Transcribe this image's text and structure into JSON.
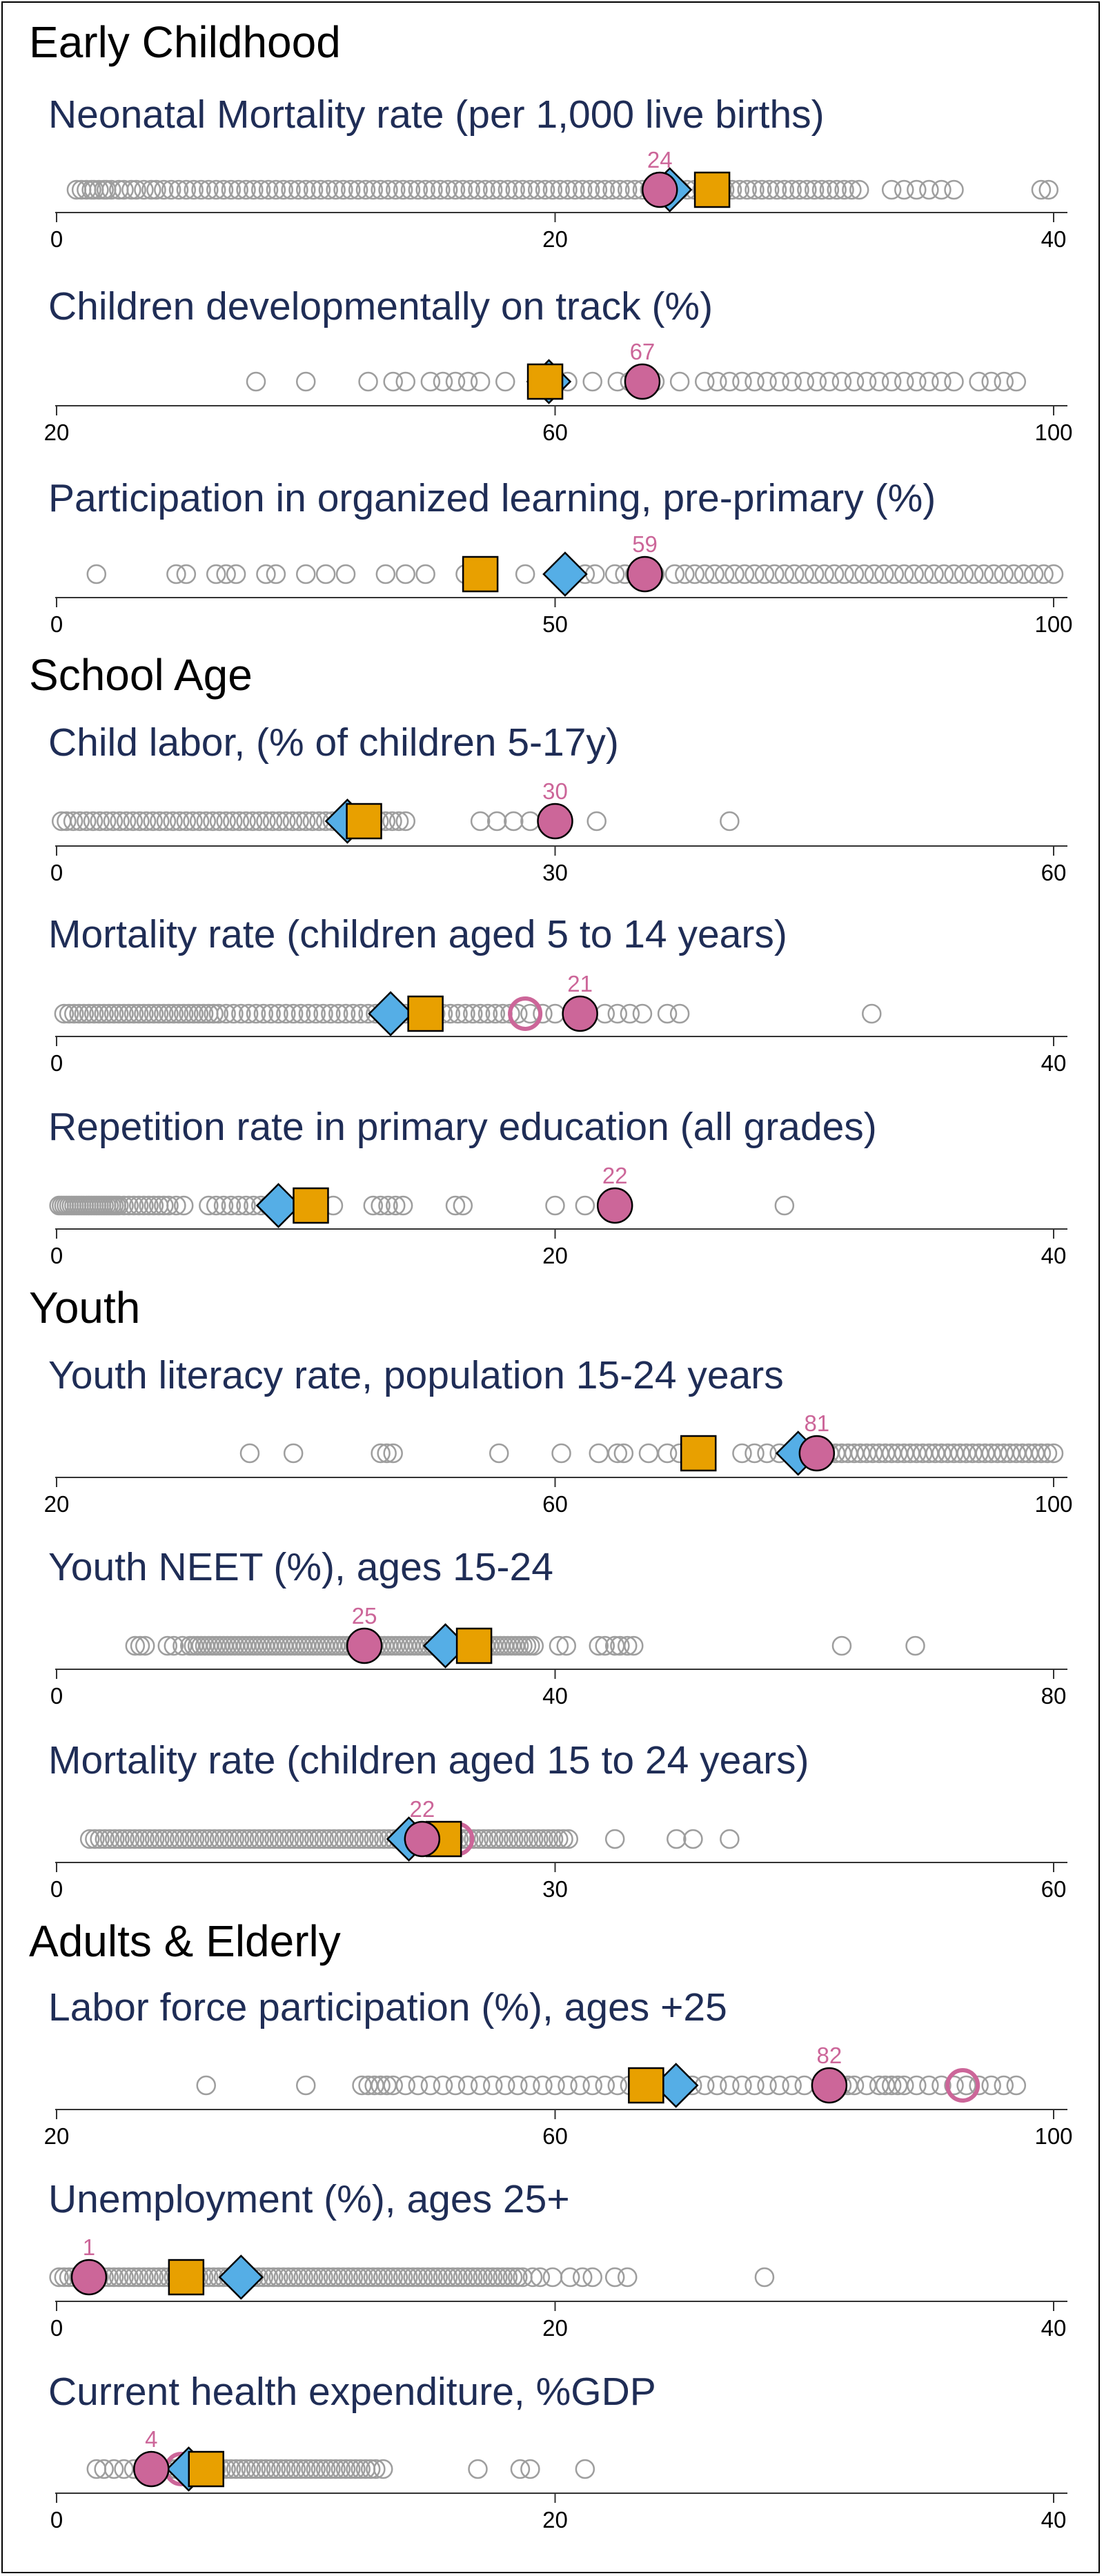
{
  "colors": {
    "other_countries": "#9e9e9e",
    "highlight": "#cc6699",
    "diamond": "#55aee6",
    "square": "#e8a000",
    "axis": "#333333",
    "title": "#1f2d56"
  },
  "chart_data": [
    {
      "section": "Early Childhood",
      "type": "scatter",
      "title": "Neonatal Mortality rate (per 1,000 live births)",
      "xlim": [
        0,
        40
      ],
      "ticks": [
        0,
        20,
        40
      ],
      "others": [
        0.8,
        1.0,
        1.2,
        1.4,
        1.5,
        1.7,
        1.9,
        2.0,
        2.2,
        2.5,
        2.7,
        3.0,
        3.2,
        3.5,
        3.8,
        4.0,
        4.3,
        4.6,
        4.9,
        5.2,
        5.5,
        5.8,
        6.1,
        6.4,
        6.7,
        7.0,
        7.3,
        7.6,
        7.9,
        8.2,
        8.5,
        8.8,
        9.1,
        9.4,
        9.7,
        10.0,
        10.3,
        10.6,
        10.9,
        11.2,
        11.5,
        11.8,
        12.1,
        12.4,
        12.7,
        13.0,
        13.3,
        13.6,
        13.9,
        14.2,
        14.5,
        14.8,
        15.1,
        15.4,
        15.7,
        16.0,
        16.3,
        16.6,
        16.9,
        17.2,
        17.5,
        17.8,
        18.1,
        18.4,
        18.7,
        19.0,
        19.3,
        19.6,
        19.9,
        20.2,
        20.5,
        20.8,
        21.1,
        21.4,
        21.7,
        22.0,
        22.3,
        22.6,
        22.9,
        23.2,
        23.5,
        23.8,
        24.1,
        24.4,
        24.7,
        25.0,
        25.3,
        25.6,
        25.9,
        26.2,
        26.5,
        26.8,
        27.1,
        27.4,
        27.7,
        28.0,
        28.3,
        28.6,
        28.9,
        29.2,
        29.5,
        29.8,
        30.1,
        30.4,
        30.7,
        31.0,
        31.3,
        31.6,
        31.9,
        32.2,
        33.5,
        34.0,
        34.5,
        35.0,
        35.5,
        36.0,
        39.5,
        39.8
      ],
      "highlight": {
        "value": 24.2,
        "label": "24"
      },
      "highlight_ring": null,
      "diamond": 24.6,
      "square": 26.3
    },
    {
      "section": null,
      "type": "scatter",
      "title": "Children developmentally on track (%)",
      "xlim": [
        20,
        100
      ],
      "ticks": [
        20,
        60,
        100
      ],
      "others": [
        36,
        40,
        45,
        47,
        48,
        50,
        51,
        52,
        53,
        54,
        56,
        61,
        63,
        65,
        66,
        67,
        68,
        70,
        72,
        73,
        74,
        75,
        76,
        77,
        78,
        79,
        80,
        81,
        82,
        83,
        84,
        85,
        86,
        87,
        88,
        89,
        90,
        91,
        92,
        94,
        95,
        96,
        97
      ],
      "highlight": {
        "value": 67,
        "label": "67"
      },
      "highlight_ring": null,
      "diamond": 59.5,
      "square": 59.2
    },
    {
      "section": null,
      "type": "scatter",
      "title": "Participation in organized learning,  pre-primary (%)",
      "xlim": [
        0,
        100
      ],
      "ticks": [
        0,
        50,
        100
      ],
      "others": [
        4,
        12,
        13,
        16,
        17,
        18,
        21,
        22,
        25,
        27,
        29,
        33,
        35,
        37,
        41,
        43,
        47,
        53,
        54,
        56,
        57,
        58,
        60,
        62,
        63,
        64,
        65,
        66,
        67,
        68,
        69,
        70,
        71,
        72,
        73,
        74,
        75,
        76,
        77,
        78,
        79,
        80,
        81,
        82,
        83,
        84,
        85,
        86,
        87,
        88,
        89,
        90,
        91,
        92,
        93,
        94,
        95,
        96,
        97,
        98,
        99,
        100
      ],
      "highlight": {
        "value": 59,
        "label": "59"
      },
      "highlight_ring": null,
      "diamond": 51,
      "square": 42.5
    },
    {
      "section": "School Age",
      "type": "scatter",
      "title": "Child labor, (% of children 5-17y)",
      "xlim": [
        0,
        60
      ],
      "ticks": [
        0,
        30,
        60
      ],
      "others": [
        0.3,
        0.6,
        1.0,
        1.4,
        1.8,
        2.2,
        2.6,
        3.0,
        3.4,
        3.8,
        4.2,
        4.6,
        5.0,
        5.4,
        5.8,
        6.2,
        6.6,
        7.0,
        7.4,
        7.8,
        8.2,
        8.6,
        9.0,
        9.4,
        9.8,
        10.2,
        10.6,
        11.0,
        11.4,
        11.8,
        12.2,
        12.6,
        13.0,
        13.4,
        13.8,
        14.2,
        14.6,
        15.0,
        15.4,
        15.8,
        16.2,
        16.6,
        17.0,
        17.4,
        17.8,
        18.2,
        18.6,
        19.0,
        19.4,
        19.8,
        20.2,
        20.6,
        21.0,
        25.5,
        26.5,
        27.5,
        28.5,
        32.5,
        40.5
      ],
      "highlight": {
        "value": 30,
        "label": "30"
      },
      "highlight_ring": null,
      "diamond": 17.5,
      "square": 18.5
    },
    {
      "section": null,
      "type": "scatter",
      "title": "Mortality rate (children aged 5 to 14 years)",
      "xlim": [
        0,
        40
      ],
      "ticks": [
        0,
        40
      ],
      "others": [
        0.3,
        0.5,
        0.7,
        0.9,
        1.1,
        1.3,
        1.5,
        1.7,
        1.9,
        2.1,
        2.3,
        2.5,
        2.7,
        2.9,
        3.1,
        3.3,
        3.5,
        3.7,
        3.9,
        4.1,
        4.3,
        4.5,
        4.7,
        4.9,
        5.1,
        5.3,
        5.5,
        5.7,
        5.9,
        6.1,
        6.3,
        6.5,
        6.8,
        7.1,
        7.4,
        7.7,
        8.0,
        8.3,
        8.6,
        8.9,
        9.2,
        9.5,
        9.8,
        10.1,
        10.4,
        10.7,
        11.0,
        11.3,
        11.6,
        11.9,
        12.2,
        12.5,
        12.8,
        13.1,
        13.4,
        13.7,
        14.0,
        14.3,
        14.6,
        14.9,
        15.2,
        15.5,
        15.8,
        16.1,
        16.4,
        16.7,
        17.0,
        17.3,
        17.6,
        17.9,
        18.2,
        18.5,
        19.0,
        19.5,
        20.0,
        22.0,
        22.5,
        23.0,
        23.5,
        24.5,
        25.0,
        32.7
      ],
      "highlight": {
        "value": 21,
        "label": "21"
      },
      "highlight_ring": 18.8,
      "diamond": 13.4,
      "square": 14.8
    },
    {
      "section": null,
      "type": "scatter",
      "title": "Repetition rate in primary education (all grades)",
      "xlim": [
        0,
        40
      ],
      "ticks": [
        0,
        20,
        40
      ],
      "others": [
        0.1,
        0.2,
        0.3,
        0.4,
        0.5,
        0.6,
        0.7,
        0.8,
        0.9,
        1.0,
        1.1,
        1.2,
        1.3,
        1.4,
        1.5,
        1.6,
        1.7,
        1.8,
        1.9,
        2.0,
        2.1,
        2.2,
        2.3,
        2.4,
        2.5,
        2.7,
        2.9,
        3.1,
        3.3,
        3.5,
        3.7,
        3.9,
        4.1,
        4.3,
        4.5,
        4.8,
        5.1,
        6.1,
        6.4,
        6.7,
        7.0,
        7.3,
        7.6,
        7.9,
        8.2,
        8.5,
        9.1,
        10.0,
        11.1,
        12.7,
        13.0,
        13.3,
        13.6,
        13.9,
        16.0,
        16.3,
        20.0,
        21.2,
        29.2
      ],
      "highlight": {
        "value": 22.4,
        "label": "22"
      },
      "highlight_ring": null,
      "diamond": 8.9,
      "square": 10.2
    },
    {
      "section": "Youth",
      "type": "scatter",
      "title": "Youth literacy rate, population 15-24 years",
      "xlim": [
        20,
        100
      ],
      "ticks": [
        20,
        60,
        100
      ],
      "others": [
        35.5,
        39,
        46,
        46.5,
        47,
        55.5,
        60.5,
        63.5,
        65,
        65.5,
        67.5,
        69,
        70,
        75,
        76,
        77,
        78,
        79,
        80,
        80.5,
        81,
        81.5,
        82,
        82.5,
        83,
        83.5,
        84,
        84.5,
        85,
        85.5,
        86,
        86.5,
        87,
        87.5,
        88,
        88.5,
        89,
        89.5,
        90,
        90.5,
        91,
        91.5,
        92,
        92.5,
        93,
        93.5,
        94,
        94.5,
        95,
        95.5,
        96,
        96.5,
        97,
        97.5,
        98,
        98.5,
        99,
        99.5,
        100
      ],
      "highlight": {
        "value": 81,
        "label": "81"
      },
      "highlight_ring": null,
      "diamond": 79.5,
      "square": 71.5
    },
    {
      "section": null,
      "type": "scatter",
      "title": "Youth NEET (%), ages 15-24",
      "xlim": [
        0,
        80
      ],
      "ticks": [
        0,
        40,
        80
      ],
      "others": [
        6.3,
        6.7,
        7.1,
        8.9,
        9.4,
        10.1,
        10.7,
        11.0,
        11.3,
        11.6,
        11.9,
        12.2,
        12.5,
        12.8,
        13.1,
        13.4,
        13.7,
        14.0,
        14.3,
        14.6,
        14.9,
        15.2,
        15.5,
        15.8,
        16.1,
        16.4,
        16.7,
        17.0,
        17.3,
        17.6,
        17.9,
        18.2,
        18.5,
        18.8,
        19.1,
        19.4,
        19.7,
        20.0,
        20.3,
        20.6,
        20.9,
        21.2,
        21.5,
        21.8,
        22.1,
        22.4,
        22.7,
        23.0,
        23.3,
        23.6,
        23.9,
        24.2,
        24.5,
        24.8,
        25.1,
        25.4,
        25.7,
        26.0,
        26.3,
        26.6,
        26.9,
        27.2,
        27.5,
        27.8,
        28.1,
        28.4,
        28.7,
        29.0,
        29.3,
        29.6,
        29.9,
        30.2,
        30.5,
        30.8,
        31.1,
        31.4,
        31.7,
        32.0,
        32.3,
        32.6,
        32.9,
        33.2,
        33.5,
        33.8,
        34.1,
        34.4,
        34.7,
        35.0,
        35.3,
        35.6,
        35.9,
        36.2,
        36.5,
        36.8,
        37.1,
        37.4,
        37.7,
        38.0,
        38.3,
        40.3,
        40.9,
        43.5,
        44.0,
        44.8,
        45.2,
        45.8,
        46.3,
        63.0,
        68.9
      ],
      "highlight": {
        "value": 24.7,
        "label": "25"
      },
      "highlight_ring": null,
      "diamond": 31.2,
      "square": 33.5
    },
    {
      "section": null,
      "type": "scatter",
      "title": "Mortality rate (children aged 15 to 24 years)",
      "xlim": [
        0,
        60
      ],
      "ticks": [
        0,
        30,
        60
      ],
      "others": [
        2.0,
        2.3,
        2.6,
        2.9,
        3.2,
        3.5,
        3.8,
        4.1,
        4.4,
        4.7,
        5.0,
        5.3,
        5.6,
        5.9,
        6.2,
        6.5,
        6.8,
        7.1,
        7.4,
        7.7,
        8.0,
        8.3,
        8.6,
        8.9,
        9.2,
        9.5,
        9.8,
        10.1,
        10.4,
        10.7,
        11.0,
        11.3,
        11.6,
        11.9,
        12.2,
        12.5,
        12.8,
        13.1,
        13.4,
        13.7,
        14.0,
        14.3,
        14.6,
        14.9,
        15.2,
        15.5,
        15.8,
        16.1,
        16.4,
        16.7,
        17.0,
        17.3,
        17.6,
        17.9,
        18.2,
        18.5,
        18.8,
        19.1,
        19.4,
        19.7,
        20.0,
        20.3,
        20.6,
        20.9,
        21.2,
        21.5,
        21.8,
        22.1,
        22.4,
        22.7,
        23.0,
        23.3,
        23.6,
        23.9,
        24.2,
        24.5,
        24.8,
        25.1,
        25.4,
        25.7,
        26.0,
        26.3,
        26.6,
        26.9,
        27.2,
        27.5,
        27.8,
        28.1,
        28.4,
        28.7,
        29.0,
        29.3,
        29.6,
        29.9,
        30.2,
        30.5,
        30.8,
        33.6,
        37.3,
        38.3,
        40.5
      ],
      "highlight": {
        "value": 22,
        "label": "22"
      },
      "highlight_ring": 24.1,
      "diamond": 21.2,
      "square": 23.3
    },
    {
      "section": "Adults & Elderly",
      "type": "scatter",
      "title": "Labor force participation (%), ages +25",
      "xlim": [
        20,
        100
      ],
      "ticks": [
        20,
        60,
        100
      ],
      "others": [
        32,
        40,
        44.5,
        45,
        45.5,
        46,
        46.5,
        47,
        48,
        49,
        50,
        51,
        52,
        53,
        54,
        55,
        56,
        57,
        58,
        59,
        60,
        61,
        62,
        63,
        64,
        65,
        66,
        67,
        68,
        69,
        70,
        71,
        72,
        73,
        74,
        75,
        76,
        77,
        78,
        79,
        80,
        83,
        83.5,
        84,
        85,
        86,
        86.5,
        87,
        87.5,
        88,
        89,
        90,
        91,
        92,
        93,
        94,
        95,
        96,
        97
      ],
      "highlight": {
        "value": 82,
        "label": "82"
      },
      "highlight_ring": 92.7,
      "diamond": 69.7,
      "square": 67.3
    },
    {
      "section": null,
      "type": "scatter",
      "title": "Unemployment (%), ages 25+",
      "xlim": [
        0,
        40
      ],
      "ticks": [
        0,
        20,
        40
      ],
      "others": [
        0.1,
        0.3,
        0.5,
        0.7,
        0.9,
        1.1,
        1.3,
        1.5,
        1.7,
        1.9,
        2.1,
        2.3,
        2.5,
        2.7,
        2.9,
        3.1,
        3.3,
        3.5,
        3.7,
        3.9,
        4.1,
        4.3,
        4.5,
        4.7,
        4.9,
        5.1,
        5.3,
        5.5,
        5.7,
        5.9,
        6.1,
        6.3,
        6.5,
        6.7,
        6.9,
        7.1,
        7.3,
        7.5,
        7.7,
        7.9,
        8.1,
        8.3,
        8.5,
        8.7,
        8.9,
        9.1,
        9.3,
        9.5,
        9.7,
        9.9,
        10.1,
        10.3,
        10.5,
        10.7,
        10.9,
        11.1,
        11.3,
        11.5,
        11.7,
        11.9,
        12.1,
        12.3,
        12.5,
        12.7,
        12.9,
        13.1,
        13.3,
        13.5,
        13.7,
        13.9,
        14.1,
        14.3,
        14.5,
        14.7,
        14.9,
        15.1,
        15.3,
        15.5,
        15.7,
        15.9,
        16.1,
        16.3,
        16.5,
        16.7,
        16.9,
        17.1,
        17.3,
        17.5,
        17.7,
        17.9,
        18.1,
        18.3,
        18.5,
        18.7,
        19.1,
        19.4,
        19.9,
        20.6,
        21.1,
        21.5,
        22.4,
        22.9,
        28.4
      ],
      "highlight": {
        "value": 1.3,
        "label": "1"
      },
      "highlight_ring": null,
      "diamond": 7.4,
      "square": 5.2
    },
    {
      "section": null,
      "type": "scatter",
      "title": "Current health expenditure, %GDP",
      "xlim": [
        0,
        40
      ],
      "ticks": [
        0,
        20,
        40
      ],
      "others": [
        1.6,
        1.9,
        2.3,
        2.7,
        3.1,
        3.5,
        3.9,
        4.3,
        4.6,
        4.8,
        5.0,
        5.2,
        5.4,
        5.6,
        5.8,
        6.0,
        6.2,
        6.4,
        6.6,
        6.8,
        7.0,
        7.2,
        7.4,
        7.6,
        7.8,
        8.0,
        8.2,
        8.4,
        8.6,
        8.8,
        9.0,
        9.2,
        9.4,
        9.6,
        9.8,
        10.0,
        10.2,
        10.4,
        10.6,
        10.8,
        11.0,
        11.2,
        11.4,
        11.6,
        11.8,
        12.0,
        12.2,
        12.4,
        12.6,
        12.8,
        13.1,
        16.9,
        18.6,
        19.0,
        21.2
      ],
      "highlight": {
        "value": 3.8,
        "label": "4"
      },
      "highlight_ring": 5.0,
      "diamond": 5.3,
      "square": 6.0
    }
  ]
}
